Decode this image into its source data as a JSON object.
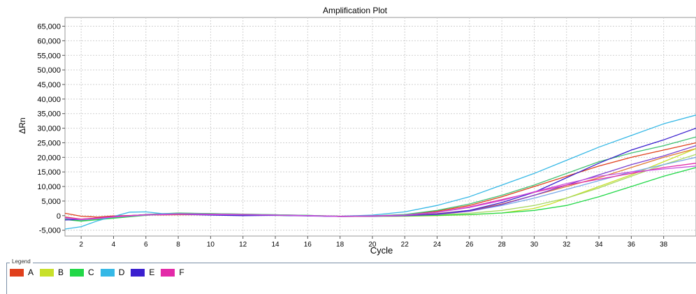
{
  "chart_data": {
    "type": "line",
    "title": "Amplification Plot",
    "xlabel": "Cycle",
    "ylabel": "ΔRn",
    "xlim": [
      1,
      40
    ],
    "ylim": [
      -7000,
      68000
    ],
    "x_ticks": [
      2,
      4,
      6,
      8,
      10,
      12,
      14,
      16,
      18,
      20,
      22,
      24,
      26,
      28,
      30,
      32,
      34,
      36,
      38
    ],
    "y_ticks": [
      -5000,
      0,
      5000,
      10000,
      15000,
      20000,
      25000,
      30000,
      35000,
      40000,
      45000,
      50000,
      55000,
      60000,
      65000
    ],
    "y_tick_labels": [
      "-5,000",
      "0",
      "5,000",
      "10,000",
      "15,000",
      "20,000",
      "25,000",
      "30,000",
      "35,000",
      "40,000",
      "45,000",
      "50,000",
      "55,000",
      "60,000",
      "65,000"
    ],
    "grid": true,
    "legend_title": "Legend",
    "legend": [
      {
        "name": "A",
        "color": "#e0401c"
      },
      {
        "name": "B",
        "color": "#c8e02a"
      },
      {
        "name": "C",
        "color": "#22d848"
      },
      {
        "name": "D",
        "color": "#35b8e6"
      },
      {
        "name": "E",
        "color": "#3a1fcf"
      },
      {
        "name": "F",
        "color": "#e32aa8"
      }
    ],
    "series": [
      {
        "color": "#e0401c",
        "x": [
          1,
          2,
          3,
          4,
          6,
          8,
          10,
          12,
          14,
          16,
          18,
          20,
          22,
          24,
          26,
          28,
          30,
          32,
          34,
          36,
          38,
          40
        ],
        "y": [
          800,
          -200,
          -500,
          -100,
          200,
          300,
          300,
          200,
          100,
          0,
          -200,
          -100,
          300,
          1500,
          3500,
          6500,
          10000,
          13500,
          17000,
          20000,
          22500,
          25000
        ]
      },
      {
        "color": "#e07a30",
        "x": [
          1,
          2,
          3,
          4,
          6,
          8,
          10,
          12,
          14,
          16,
          18,
          20,
          22,
          24,
          26,
          28,
          30,
          32,
          34,
          36,
          38,
          40
        ],
        "y": [
          -400,
          -1200,
          -800,
          -300,
          300,
          500,
          400,
          300,
          200,
          0,
          -300,
          -200,
          100,
          700,
          1800,
          4000,
          7000,
          10000,
          13000,
          16500,
          20000,
          23000
        ]
      },
      {
        "color": "#c8e02a",
        "x": [
          1,
          2,
          3,
          4,
          6,
          8,
          10,
          12,
          14,
          16,
          18,
          20,
          22,
          24,
          26,
          28,
          30,
          31,
          32,
          34,
          36,
          38,
          40
        ],
        "y": [
          -900,
          -1600,
          -1200,
          -700,
          200,
          600,
          500,
          400,
          200,
          0,
          -300,
          -300,
          -200,
          0,
          300,
          900,
          2500,
          4000,
          6000,
          10000,
          14000,
          18500,
          23000
        ]
      },
      {
        "color": "#a8d860",
        "x": [
          1,
          2,
          3,
          4,
          6,
          8,
          10,
          12,
          14,
          16,
          18,
          20,
          22,
          24,
          26,
          28,
          30,
          32,
          34,
          36,
          38,
          40
        ],
        "y": [
          -600,
          -1400,
          -1000,
          -500,
          300,
          600,
          500,
          400,
          200,
          0,
          -300,
          -300,
          -100,
          300,
          800,
          1800,
          3500,
          6000,
          9500,
          13500,
          17500,
          21000
        ]
      },
      {
        "color": "#22d848",
        "x": [
          1,
          2,
          3,
          4,
          6,
          8,
          10,
          12,
          14,
          16,
          18,
          20,
          22,
          24,
          26,
          28,
          30,
          32,
          34,
          36,
          38,
          40
        ],
        "y": [
          -1300,
          -1900,
          -1400,
          -900,
          100,
          800,
          700,
          500,
          300,
          100,
          -200,
          -200,
          -100,
          100,
          400,
          900,
          1800,
          3500,
          6500,
          10000,
          13500,
          16500
        ]
      },
      {
        "color": "#3fc070",
        "x": [
          1,
          2,
          3,
          4,
          6,
          8,
          10,
          12,
          14,
          16,
          18,
          20,
          22,
          24,
          26,
          28,
          30,
          32,
          34,
          36,
          38,
          40
        ],
        "y": [
          -1000,
          -1600,
          -1100,
          -600,
          400,
          900,
          700,
          500,
          300,
          100,
          -200,
          -100,
          400,
          1800,
          4000,
          7000,
          10500,
          14500,
          18500,
          21500,
          24000,
          27000
        ]
      },
      {
        "color": "#35b8e6",
        "x": [
          1,
          2,
          3,
          4,
          5,
          6,
          7,
          8,
          10,
          12,
          14,
          16,
          18,
          20,
          22,
          24,
          26,
          28,
          30,
          32,
          34,
          36,
          38,
          40
        ],
        "y": [
          -4600,
          -3800,
          -1800,
          -300,
          1200,
          1300,
          700,
          700,
          500,
          300,
          100,
          0,
          -200,
          200,
          1300,
          3500,
          6500,
          10500,
          14500,
          19000,
          23500,
          27500,
          31500,
          34500
        ]
      },
      {
        "color": "#78a8e8",
        "x": [
          1,
          2,
          3,
          4,
          6,
          8,
          10,
          12,
          14,
          16,
          18,
          20,
          22,
          24,
          26,
          28,
          30,
          32,
          34,
          36,
          38,
          40
        ],
        "y": [
          -900,
          -1500,
          -1000,
          -500,
          300,
          600,
          500,
          400,
          200,
          0,
          -300,
          -200,
          0,
          500,
          1500,
          3500,
          6000,
          9000,
          12000,
          15000,
          17500,
          20000
        ]
      },
      {
        "color": "#3a1fcf",
        "x": [
          1,
          2,
          3,
          4,
          6,
          8,
          10,
          12,
          14,
          16,
          18,
          20,
          22,
          24,
          26,
          28,
          30,
          32,
          34,
          36,
          38,
          40
        ],
        "y": [
          -1500,
          -1300,
          -800,
          -300,
          300,
          500,
          200,
          0,
          100,
          -100,
          -300,
          -200,
          0,
          600,
          1800,
          4500,
          8000,
          13000,
          18000,
          22500,
          26000,
          30000
        ]
      },
      {
        "color": "#7a3fd0",
        "x": [
          1,
          2,
          3,
          4,
          6,
          8,
          10,
          12,
          14,
          16,
          18,
          20,
          22,
          24,
          26,
          28,
          30,
          32,
          34,
          36,
          38,
          40
        ],
        "y": [
          -700,
          -1300,
          -900,
          -400,
          300,
          500,
          400,
          300,
          200,
          0,
          -300,
          -200,
          0,
          400,
          1500,
          3800,
          7000,
          10500,
          14000,
          17500,
          20500,
          24000
        ]
      },
      {
        "color": "#e32aa8",
        "x": [
          1,
          2,
          3,
          4,
          6,
          8,
          10,
          12,
          14,
          16,
          18,
          20,
          22,
          24,
          26,
          28,
          30,
          32,
          34,
          36,
          38,
          40
        ],
        "y": [
          -600,
          -1200,
          -800,
          -300,
          300,
          600,
          500,
          400,
          200,
          0,
          -200,
          -100,
          200,
          1200,
          3000,
          5500,
          8000,
          10500,
          12500,
          14500,
          16500,
          18000
        ]
      },
      {
        "color": "#c850e0",
        "x": [
          1,
          2,
          3,
          4,
          6,
          8,
          10,
          12,
          14,
          16,
          18,
          20,
          22,
          24,
          26,
          28,
          30,
          32,
          34,
          36,
          38,
          40
        ],
        "y": [
          -800,
          -1400,
          -1000,
          -500,
          200,
          500,
          400,
          300,
          200,
          0,
          -300,
          -200,
          200,
          1100,
          2800,
          5200,
          8200,
          11000,
          13500,
          15000,
          16000,
          17000
        ]
      }
    ]
  }
}
